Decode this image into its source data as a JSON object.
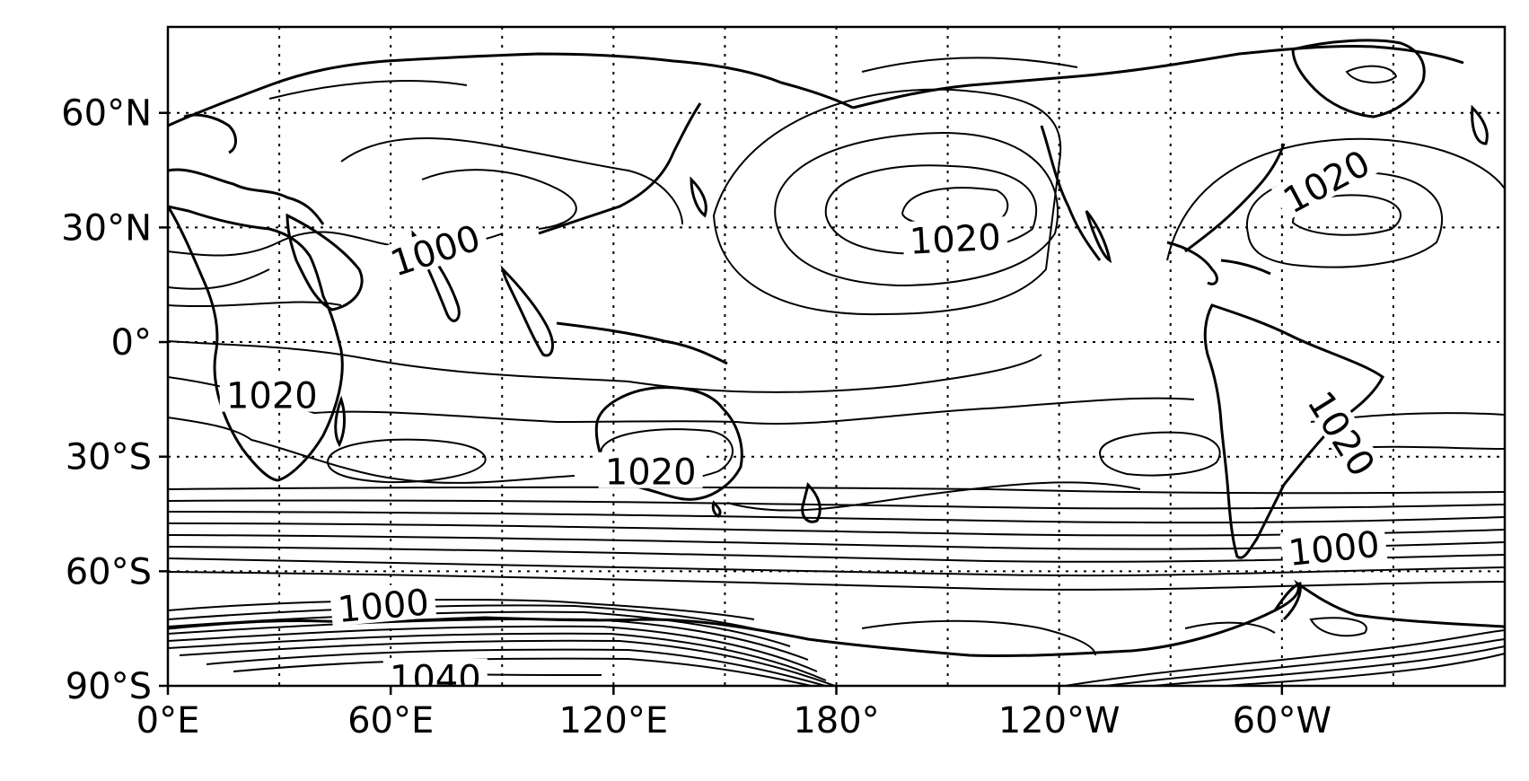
{
  "map": {
    "projection": "PlateCarree",
    "gridlines": true,
    "x_ticks": [
      {
        "label": "0°E",
        "lon": 0
      },
      {
        "label": "60°E",
        "lon": 60
      },
      {
        "label": "120°E",
        "lon": 120
      },
      {
        "label": "180°",
        "lon": 180
      },
      {
        "label": "120°W",
        "lon": 240
      },
      {
        "label": "60°W",
        "lon": 300
      }
    ],
    "y_ticks": [
      {
        "label": "60°N",
        "lat": 60
      },
      {
        "label": "30°N",
        "lat": 30
      },
      {
        "label": "0°",
        "lat": 0
      },
      {
        "label": "30°S",
        "lat": -30
      },
      {
        "label": "60°S",
        "lat": -60
      },
      {
        "label": "90°S",
        "lat": -90
      }
    ],
    "contour_labels": [
      {
        "text": "1000",
        "lon": 72,
        "lat": 24,
        "rotation": -18
      },
      {
        "text": "1020",
        "lon": 212,
        "lat": 27,
        "rotation": -3
      },
      {
        "text": "1020",
        "lon": 312,
        "lat": 42,
        "rotation": -28
      },
      {
        "text": "1020",
        "lon": 28,
        "lat": -14,
        "rotation": 0
      },
      {
        "text": "1020",
        "lon": 130,
        "lat": -34,
        "rotation": 0
      },
      {
        "text": "1020",
        "lon": 316,
        "lat": -24,
        "rotation": 58
      },
      {
        "text": "1000",
        "lon": 314,
        "lat": -54,
        "rotation": -6
      },
      {
        "text": "1000",
        "lon": 58,
        "lat": -69,
        "rotation": -5
      },
      {
        "text": "1040",
        "lon": 72,
        "lat": -88,
        "rotation": 0
      }
    ]
  }
}
